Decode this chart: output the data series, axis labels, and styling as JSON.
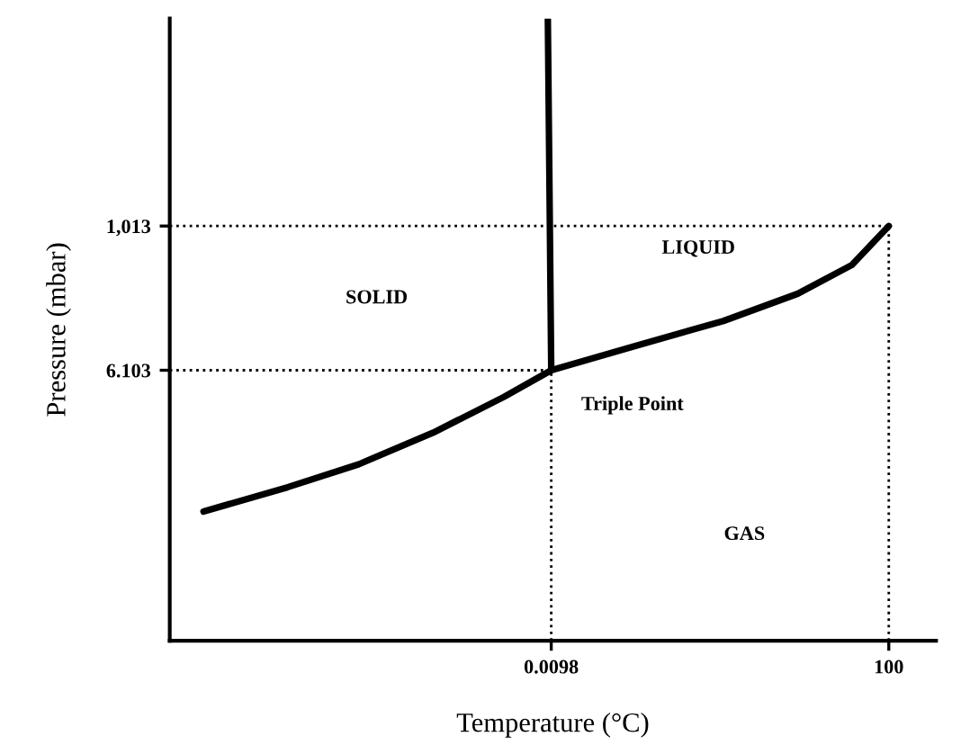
{
  "chart_data": {
    "type": "line",
    "xlabel": "Temperature (°C)",
    "ylabel": "Pressure (mbar)",
    "xlim": [
      -113,
      114
    ],
    "ylim": [
      -1882,
      2461
    ],
    "xticks": [
      {
        "value": 0.0098,
        "label": "0.0098"
      },
      100
    ],
    "yticks": [
      {
        "value": 6.103,
        "label": "6.103"
      },
      {
        "value": 1013,
        "label": "1,013"
      }
    ],
    "grid": false,
    "legend": false,
    "marker": "none",
    "series": [
      {
        "color": "#000000",
        "line_style": "solid",
        "x": [
          -103,
          -78,
          -57,
          -35,
          -14,
          0.0098,
          24,
          51,
          73,
          89,
          100
        ],
        "values": [
          -980,
          -810,
          -650,
          -430,
          -180,
          6.103,
          170,
          350,
          540,
          740,
          1013
        ]
      },
      {
        "color": "#000000",
        "line_style": "solid",
        "x": [
          0.0098,
          -1
        ],
        "values": [
          6.103,
          2460
        ]
      },
      {
        "color": "#000000",
        "line_style": "dotted",
        "x": [
          -113,
          0.0098
        ],
        "values": [
          6.103,
          6.103
        ]
      },
      {
        "color": "#000000",
        "line_style": "dotted",
        "x": [
          -113,
          100
        ],
        "values": [
          1013,
          1013
        ]
      },
      {
        "color": "#000000",
        "line_style": "dotted",
        "x": [
          0.0098,
          0.0098
        ],
        "values": [
          -1882,
          6.103
        ]
      },
      {
        "color": "#000000",
        "line_style": "dotted",
        "x": [
          100,
          100
        ],
        "values": [
          -1882,
          1013
        ]
      }
    ],
    "annotations": [
      "SOLID",
      "LIQUID",
      {
        "text": "Triple Point",
        "x": 0.0098,
        "y": 6.103
      },
      "GAS"
    ]
  }
}
